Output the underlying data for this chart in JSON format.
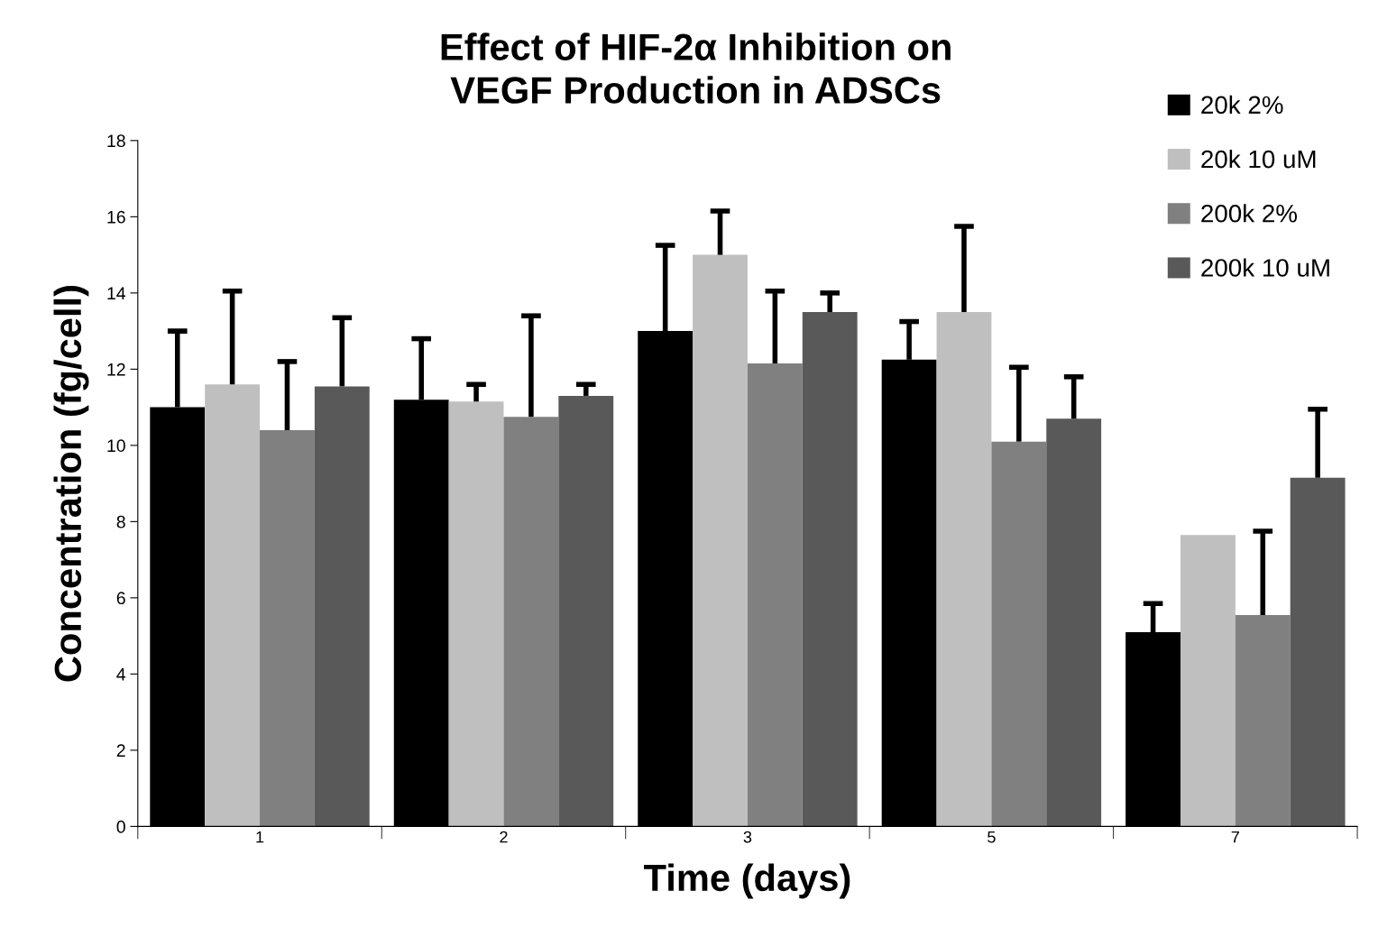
{
  "chart_data": {
    "type": "bar",
    "title": "Effect of HIF-2α Inhibition on\nVEGF Production in ADSCs",
    "xlabel": "Time (days)",
    "ylabel": "Concentration (fg/cell)",
    "categories": [
      "1",
      "2",
      "3",
      "5",
      "7"
    ],
    "series": [
      {
        "name": "20k 2%",
        "color": "#000000",
        "values": [
          11.0,
          11.2,
          13.0,
          12.25,
          5.1
        ],
        "errors": [
          [
            11.0,
            13.0
          ],
          [
            11.2,
            12.8
          ],
          [
            13.0,
            15.25
          ],
          [
            12.25,
            13.25
          ],
          [
            5.1,
            5.85
          ]
        ]
      },
      {
        "name": "20k 10 uM",
        "color": "#bfbfbf",
        "values": [
          11.6,
          11.15,
          15.0,
          13.5,
          7.65
        ],
        "errors": [
          [
            11.6,
            14.05
          ],
          [
            11.15,
            11.6
          ],
          [
            15.0,
            16.15
          ],
          [
            13.5,
            15.75
          ],
          null
        ]
      },
      {
        "name": "200k 2%",
        "color": "#808080",
        "values": [
          10.4,
          10.75,
          12.15,
          10.1,
          5.55
        ],
        "errors": [
          [
            10.4,
            12.2
          ],
          [
            10.75,
            13.4
          ],
          [
            12.15,
            14.05
          ],
          [
            10.1,
            12.05
          ],
          [
            5.55,
            7.75
          ]
        ]
      },
      {
        "name": "200k 10 uM",
        "color": "#595959",
        "values": [
          11.55,
          11.3,
          13.5,
          10.7,
          9.15
        ],
        "errors": [
          [
            11.55,
            13.35
          ],
          [
            11.3,
            11.6
          ],
          [
            13.5,
            14.0
          ],
          [
            10.7,
            11.8
          ],
          [
            9.15,
            10.95
          ]
        ]
      }
    ],
    "ylim": [
      0,
      18
    ],
    "yticks": [
      0,
      2,
      4,
      6,
      8,
      10,
      12,
      14,
      16,
      18
    ],
    "grid": false,
    "legend": "top right"
  }
}
